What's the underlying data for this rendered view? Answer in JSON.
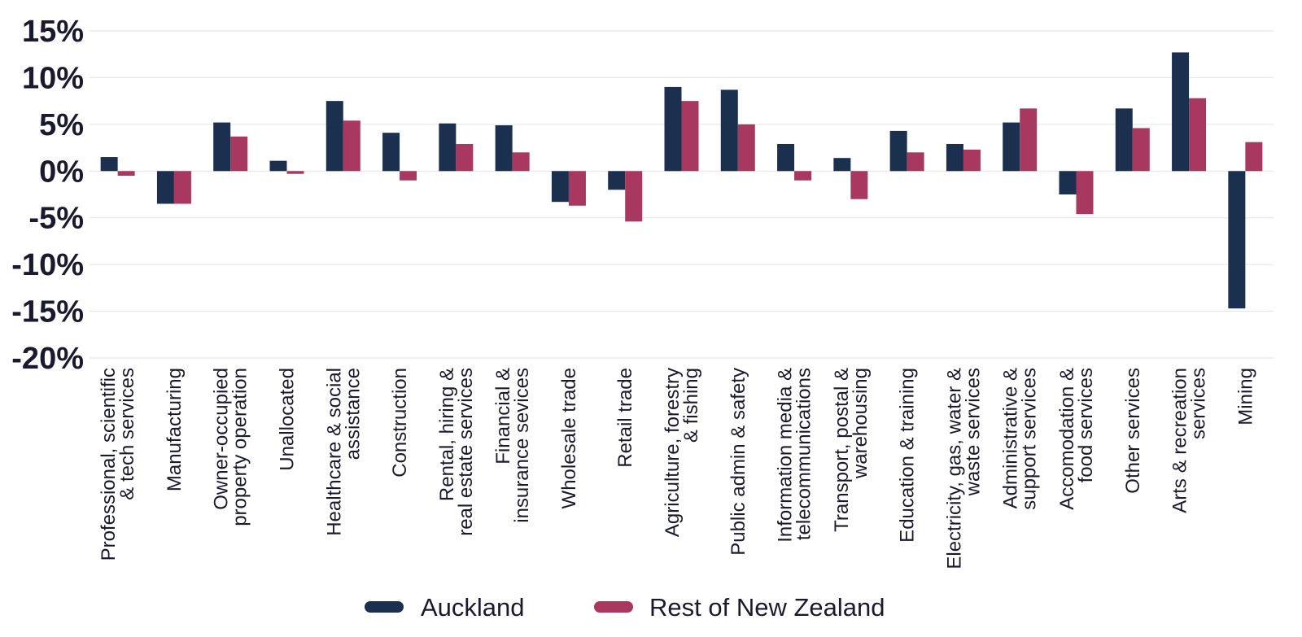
{
  "chart_data": {
    "type": "bar",
    "title": "",
    "xlabel": "",
    "ylabel": "",
    "ylim": [
      -20,
      15
    ],
    "grid": true,
    "yticks": [
      {
        "value": 15,
        "label": "15%"
      },
      {
        "value": 10,
        "label": "10%"
      },
      {
        "value": 5,
        "label": "5%"
      },
      {
        "value": 0,
        "label": "0%"
      },
      {
        "value": -5,
        "label": "-5%"
      },
      {
        "value": -10,
        "label": "-10%"
      },
      {
        "value": -15,
        "label": "-15%"
      },
      {
        "value": -20,
        "label": "-20%"
      }
    ],
    "categories": [
      [
        "Professional, scientific",
        "& tech services"
      ],
      [
        "Manufacturing"
      ],
      [
        "Owner-occupied",
        "property operation"
      ],
      [
        "Unallocated"
      ],
      [
        "Healthcare & social",
        "assistance"
      ],
      [
        "Construction"
      ],
      [
        "Rental, hiring &",
        "real estate services"
      ],
      [
        "Financial &",
        "insurance sevices"
      ],
      [
        "Wholesale trade"
      ],
      [
        "Retail trade"
      ],
      [
        "Agriculture, forestry",
        "& fishing"
      ],
      [
        "Public admin & safety"
      ],
      [
        "Information media &",
        "telecommunications"
      ],
      [
        "Transport, postal &",
        "warehousing"
      ],
      [
        "Education & training"
      ],
      [
        "Electricity, gas, water &",
        "waste services"
      ],
      [
        "Administrative &",
        "support services"
      ],
      [
        "Accomodation &",
        "food services"
      ],
      [
        "Other services"
      ],
      [
        "Arts & recreation",
        "services"
      ],
      [
        "Mining"
      ]
    ],
    "series": [
      {
        "name": "Auckland",
        "color": "#1b2f4f",
        "values": [
          1.5,
          -3.5,
          5.2,
          1.1,
          7.5,
          4.1,
          5.1,
          4.9,
          -3.3,
          -2.0,
          9.0,
          8.7,
          2.9,
          1.4,
          4.3,
          2.9,
          5.2,
          -2.5,
          6.7,
          12.7,
          -14.7
        ]
      },
      {
        "name": "Rest of New Zealand",
        "color": "#a8385f",
        "values": [
          -0.5,
          -3.5,
          3.7,
          -0.3,
          5.4,
          -1.0,
          2.9,
          2.0,
          -3.7,
          -5.4,
          7.5,
          5.0,
          -1.0,
          -3.0,
          2.0,
          2.3,
          6.7,
          -4.6,
          4.6,
          7.8,
          3.1
        ]
      }
    ],
    "legend_position": "bottom-center"
  }
}
